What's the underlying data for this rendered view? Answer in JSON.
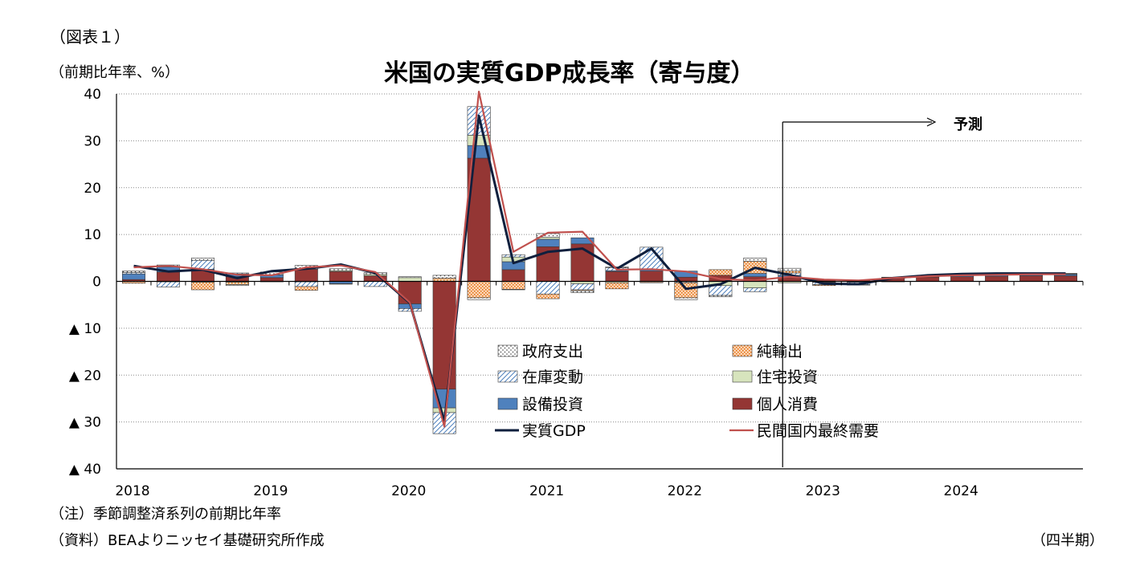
{
  "figure_label": "（図表１）",
  "unit_label": "（前期比年率、%）",
  "note": "（注）季節調整済系列の前期比年率",
  "source": "（資料）BEAよりニッセイ基礎研究所作成",
  "period_label": "（四半期）",
  "chart_data": {
    "type": "bar",
    "title": "米国の実質GDP成長率（寄与度）",
    "xlabel": "",
    "ylabel": "",
    "ylim": [
      -40,
      40
    ],
    "y_ticks": [
      40,
      30,
      20,
      10,
      0,
      -10,
      -20,
      -30,
      -40
    ],
    "y_tick_labels": [
      "40",
      "30",
      "20",
      "10",
      "0",
      "▲ 10",
      "▲ 20",
      "▲ 30",
      "▲ 40"
    ],
    "year_labels": [
      "2018",
      "2019",
      "2020",
      "2021",
      "2022",
      "2023",
      "2024"
    ],
    "quarters": [
      "2018Q1",
      "2018Q2",
      "2018Q3",
      "2018Q4",
      "2019Q1",
      "2019Q2",
      "2019Q3",
      "2019Q4",
      "2020Q1",
      "2020Q2",
      "2020Q3",
      "2020Q4",
      "2021Q1",
      "2021Q2",
      "2021Q3",
      "2021Q4",
      "2022Q1",
      "2022Q2",
      "2022Q3",
      "2022Q4",
      "2023Q1",
      "2023Q2",
      "2023Q3",
      "2023Q4",
      "2024Q1",
      "2024Q2",
      "2024Q3",
      "2024Q4"
    ],
    "forecast_start_index": 19,
    "forecast_label": "予測",
    "grid": true,
    "legend_position": "bottom-center",
    "series": [
      {
        "name": "個人消費",
        "kind": "bar",
        "style": "solid",
        "color": "#943634",
        "values": [
          0.4,
          2.0,
          2.4,
          1.0,
          0.8,
          2.6,
          2.1,
          1.2,
          -4.8,
          -23.0,
          26.3,
          2.5,
          7.4,
          8.0,
          2.1,
          2.2,
          0.9,
          1.3,
          1.0,
          0.9,
          0.3,
          0.2,
          0.7,
          0.9,
          1.0,
          1.1,
          1.2,
          1.2
        ]
      },
      {
        "name": "設備投資",
        "kind": "bar",
        "style": "solid",
        "color": "#4f81bd",
        "values": [
          1.2,
          1.1,
          0.2,
          0.6,
          0.6,
          0.0,
          -0.5,
          0.0,
          -1.0,
          -4.0,
          2.7,
          1.7,
          1.6,
          1.3,
          0.2,
          0.3,
          1.3,
          0.0,
          0.7,
          0.4,
          -0.1,
          -0.2,
          -0.1,
          0.1,
          0.3,
          0.3,
          0.3,
          0.3
        ]
      },
      {
        "name": "住宅投資",
        "kind": "bar",
        "style": "solid",
        "color": "#d7e4bd",
        "values": [
          0.0,
          -0.1,
          -0.2,
          -0.2,
          -0.1,
          -0.1,
          0.2,
          0.3,
          0.8,
          -1.0,
          2.2,
          1.0,
          0.4,
          -0.5,
          -0.3,
          -0.1,
          -0.1,
          -0.9,
          -1.4,
          -0.3,
          -0.1,
          0.0,
          0.1,
          0.1,
          0.1,
          0.1,
          0.1,
          0.1
        ]
      },
      {
        "name": "在庫変動",
        "kind": "bar",
        "style": "hatch",
        "color": "#4f81bd",
        "values": [
          0.3,
          -1.1,
          1.9,
          0.2,
          0.0,
          -1.0,
          -0.1,
          -1.1,
          -0.6,
          -4.5,
          6.1,
          0.5,
          -2.7,
          -1.3,
          0.6,
          4.8,
          -0.2,
          -2.1,
          -0.8,
          0.5,
          -0.5,
          -0.5,
          0.0,
          0.0,
          0.0,
          0.0,
          0.0,
          0.0
        ]
      },
      {
        "name": "純輸出",
        "kind": "bar",
        "style": "dots",
        "color": "#f79646",
        "values": [
          -0.4,
          0.0,
          -1.6,
          -0.5,
          0.0,
          -0.8,
          0.0,
          0.0,
          0.0,
          0.7,
          -3.5,
          -1.7,
          -1.0,
          -0.2,
          -1.3,
          -0.2,
          -3.2,
          1.2,
          2.6,
          0.4,
          -0.2,
          -0.1,
          0.0,
          0.0,
          0.0,
          0.0,
          0.0,
          0.0
        ]
      },
      {
        "name": "政府支出",
        "kind": "bar",
        "style": "speckle",
        "color": "#7f7f7f",
        "values": [
          0.3,
          0.4,
          0.5,
          -0.2,
          0.6,
          0.8,
          0.4,
          0.4,
          0.2,
          0.6,
          -0.4,
          -0.1,
          0.8,
          -0.4,
          0.2,
          0.0,
          -0.4,
          -0.3,
          0.7,
          0.6,
          0.1,
          0.1,
          0.1,
          0.1,
          0.1,
          0.1,
          0.1,
          0.1
        ]
      },
      {
        "name": "実質GDP",
        "kind": "line",
        "color": "#0f1f3d",
        "values": [
          3.3,
          2.1,
          2.5,
          0.7,
          2.2,
          2.7,
          3.6,
          1.8,
          -4.6,
          -29.9,
          35.3,
          3.9,
          6.3,
          7.0,
          2.7,
          7.0,
          -1.6,
          -0.6,
          2.9,
          1.4,
          -0.5,
          -0.6,
          0.7,
          1.3,
          1.6,
          1.7,
          1.7,
          1.7
        ]
      },
      {
        "name": "民間国内最終需要",
        "kind": "line",
        "color": "#c0504d",
        "values": [
          3.0,
          3.3,
          2.6,
          1.4,
          1.3,
          3.0,
          3.4,
          2.0,
          -4.5,
          -31.0,
          40.5,
          6.3,
          10.4,
          10.6,
          2.5,
          2.6,
          2.1,
          0.5,
          0.2,
          1.0,
          0.4,
          0.2,
          0.7,
          1.1,
          1.3,
          1.4,
          1.5,
          1.5
        ]
      }
    ]
  }
}
